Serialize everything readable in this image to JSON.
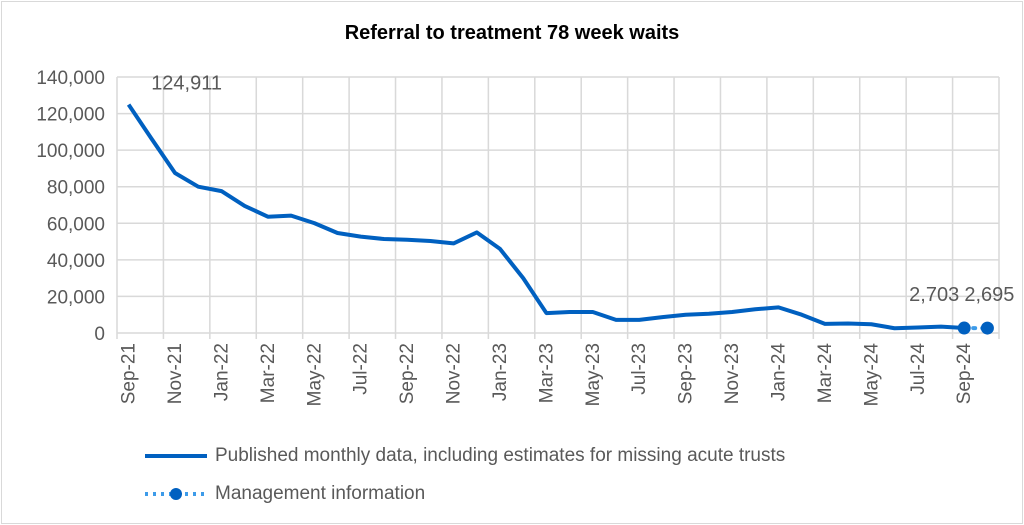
{
  "chart_data": {
    "type": "line",
    "title": "Referral to treatment 78 week waits",
    "categories": [
      "Sep-21",
      "Oct-21",
      "Nov-21",
      "Dec-21",
      "Jan-22",
      "Feb-22",
      "Mar-22",
      "Apr-22",
      "May-22",
      "Jun-22",
      "Jul-22",
      "Aug-22",
      "Sep-22",
      "Oct-22",
      "Nov-22",
      "Dec-22",
      "Jan-23",
      "Feb-23",
      "Mar-23",
      "Apr-23",
      "May-23",
      "Jun-23",
      "Jul-23",
      "Aug-23",
      "Sep-23",
      "Oct-23",
      "Nov-23",
      "Dec-23",
      "Jan-24",
      "Feb-24",
      "Mar-24",
      "Apr-24",
      "May-24",
      "Jun-24",
      "Jul-24",
      "Aug-24",
      "Sep-24",
      "Oct-24"
    ],
    "tick_labels": [
      "Sep-21",
      "Nov-21",
      "Jan-22",
      "Mar-22",
      "May-22",
      "Jul-22",
      "Sep-22",
      "Nov-22",
      "Jan-23",
      "Mar-23",
      "May-23",
      "Jul-23",
      "Sep-23",
      "Nov-23",
      "Jan-24",
      "Mar-24",
      "May-24",
      "Jul-24",
      "Sep-24"
    ],
    "ylim": [
      0,
      140000
    ],
    "yticks": [
      "0",
      "20,000",
      "40,000",
      "60,000",
      "80,000",
      "100,000",
      "120,000",
      "140,000"
    ],
    "grid": true,
    "legend_position": "bottom",
    "series": [
      {
        "name": "Published monthly data, including estimates for missing acute trusts",
        "color": "#0060c0",
        "style": "solid",
        "values": [
          124911,
          106000,
          87500,
          80000,
          77600,
          69500,
          63600,
          64200,
          60100,
          54700,
          52700,
          51400,
          51000,
          50300,
          49000,
          55000,
          46000,
          30000,
          10900,
          11500,
          11500,
          7200,
          7200,
          8700,
          10000,
          10500,
          11500,
          13000,
          14000,
          10000,
          5000,
          5200,
          4800,
          2600,
          3000,
          3500,
          2703,
          null
        ]
      },
      {
        "name": "Management information",
        "color": "#3d9be9",
        "style": "dotted-markers",
        "values": [
          null,
          null,
          null,
          null,
          null,
          null,
          null,
          null,
          null,
          null,
          null,
          null,
          null,
          null,
          null,
          null,
          null,
          null,
          null,
          null,
          null,
          null,
          null,
          null,
          null,
          null,
          null,
          null,
          null,
          null,
          null,
          null,
          null,
          null,
          null,
          null,
          2703,
          2695
        ]
      }
    ],
    "data_labels": [
      {
        "category": "Sep-21",
        "text": "124,911"
      },
      {
        "category": "Sep-24",
        "text": "2,703"
      },
      {
        "category": "Oct-24",
        "text": "2,695"
      }
    ]
  }
}
